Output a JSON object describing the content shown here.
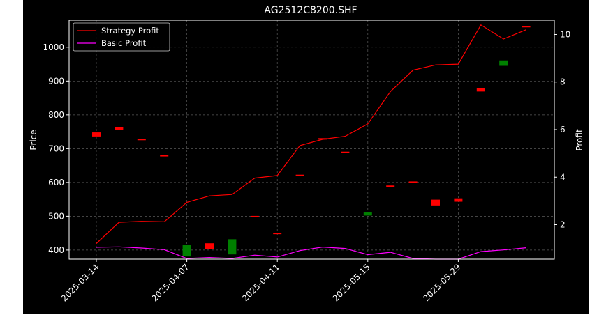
{
  "chart_data": {
    "type": "candlestick",
    "title": "AG2512C8200.SHF",
    "ylabel": "Price",
    "y2label": "Profit",
    "xlabel": "",
    "ylim": [
      373,
      1080
    ],
    "y2lim": [
      0.55,
      10.6
    ],
    "yticks": [
      400,
      500,
      600,
      700,
      800,
      900,
      1000
    ],
    "y2ticks": [
      2,
      4,
      6,
      8,
      10
    ],
    "xtick_labels": [
      {
        "index": 0,
        "label": "2025-03-14"
      },
      {
        "index": 4,
        "label": "2025-04-07"
      },
      {
        "index": 8,
        "label": "2025-04-11"
      },
      {
        "index": 12,
        "label": "2025-05-15"
      },
      {
        "index": 16,
        "label": "2025-05-29"
      }
    ],
    "grid": true,
    "legend": {
      "position": "top-left",
      "entries": [
        "Strategy Profit",
        "Basic Profit"
      ]
    },
    "colors": {
      "up": "#008000",
      "down": "#ff0000",
      "strategy": "#ff0000",
      "basic": "#ff00ff",
      "axes": "#ffffff",
      "grid": "#5a5a5a"
    },
    "candles": [
      {
        "i": 0,
        "open": 748,
        "close": 736
      },
      {
        "i": 1,
        "open": 764,
        "close": 756
      },
      {
        "i": 2,
        "open": 729,
        "close": 727
      },
      {
        "i": 3,
        "open": 681,
        "close": 679
      },
      {
        "i": 4,
        "open": 381,
        "close": 416
      },
      {
        "i": 5,
        "open": 420,
        "close": 403
      },
      {
        "i": 6,
        "open": 387,
        "close": 432
      },
      {
        "i": 7,
        "open": 501,
        "close": 499
      },
      {
        "i": 8,
        "open": 451,
        "close": 449
      },
      {
        "i": 9,
        "open": 623,
        "close": 621
      },
      {
        "i": 10,
        "open": 731,
        "close": 729
      },
      {
        "i": 11,
        "open": 691,
        "close": 689
      },
      {
        "i": 12,
        "open": 502,
        "close": 511
      },
      {
        "i": 13,
        "open": 591,
        "close": 589
      },
      {
        "i": 14,
        "open": 603,
        "close": 601
      },
      {
        "i": 15,
        "open": 549,
        "close": 532
      },
      {
        "i": 16,
        "open": 553,
        "close": 543
      },
      {
        "i": 17,
        "open": 879,
        "close": 869
      },
      {
        "i": 18,
        "open": 945,
        "close": 961
      },
      {
        "i": 19,
        "open": 1063,
        "close": 1061
      }
    ],
    "series": [
      {
        "name": "Strategy Profit",
        "axis": "right",
        "values": [
          1.21,
          2.1,
          2.14,
          2.12,
          2.94,
          3.21,
          3.27,
          3.96,
          4.07,
          5.33,
          5.59,
          5.72,
          6.24,
          7.6,
          8.5,
          8.72,
          8.75,
          10.4,
          9.81,
          10.2
        ]
      },
      {
        "name": "Basic Profit",
        "axis": "right",
        "values": [
          1.05,
          1.07,
          1.02,
          0.95,
          0.58,
          0.62,
          0.58,
          0.72,
          0.64,
          0.91,
          1.06,
          1.0,
          0.74,
          0.84,
          0.58,
          0.55,
          0.55,
          0.87,
          0.94,
          1.03
        ]
      }
    ]
  }
}
